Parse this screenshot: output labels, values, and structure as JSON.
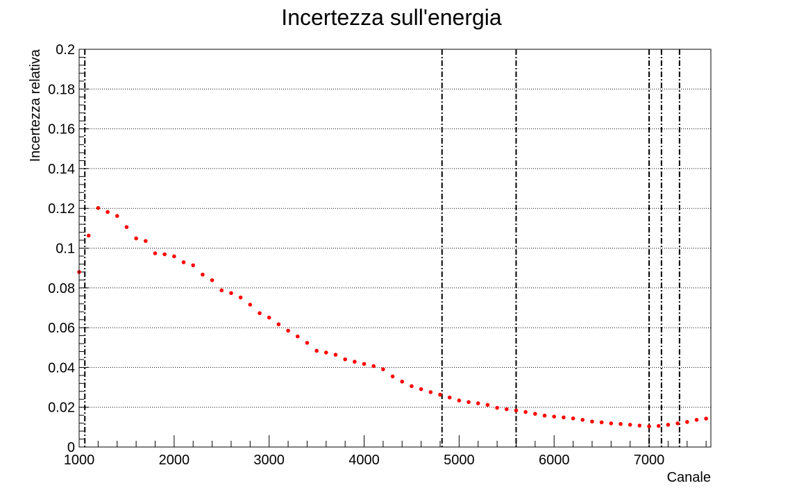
{
  "chart_data": {
    "type": "scatter",
    "title": "Incertezza sull'energia",
    "xlabel": "Canale",
    "ylabel": "Incertezza relativa",
    "xlim": [
      1000,
      7650
    ],
    "ylim": [
      0,
      0.2
    ],
    "grid": "horizontal dotted",
    "x_ticks": [
      1000,
      2000,
      3000,
      4000,
      5000,
      6000,
      7000
    ],
    "x_tick_labels": [
      "1000",
      "2000",
      "3000",
      "4000",
      "5000",
      "6000",
      "7000"
    ],
    "y_ticks": [
      0,
      0.02,
      0.04,
      0.06,
      0.08,
      0.1,
      0.12,
      0.14,
      0.16,
      0.18,
      0.2
    ],
    "y_tick_labels": [
      "0",
      "0.02",
      "0.04",
      "0.06",
      "0.08",
      "0.1",
      "0.12",
      "0.14",
      "0.16",
      "0.18",
      "0.2"
    ],
    "marker_color": "#ff0000",
    "vline_color": "#000000",
    "vertical_lines": [
      1060,
      4820,
      5600,
      7000,
      7130,
      7320
    ],
    "series": [
      {
        "x": [
          1000,
          1100,
          1200,
          1300,
          1400,
          1500,
          1600,
          1700,
          1800,
          1900,
          2000,
          2100,
          2200,
          2300,
          2400,
          2500,
          2600,
          2700,
          2800,
          2900,
          3000,
          3100,
          3200,
          3300,
          3400,
          3500,
          3600,
          3700,
          3800,
          3900,
          4000,
          4100,
          4200,
          4300,
          4400,
          4500,
          4600,
          4700,
          4800,
          4900,
          5000,
          5100,
          5200,
          5300,
          5400,
          5500,
          5600,
          5700,
          5800,
          5900,
          6000,
          6100,
          6200,
          6300,
          6400,
          6500,
          6600,
          6700,
          6800,
          6900,
          7000,
          7100,
          7200,
          7300,
          7400,
          7500,
          7600
        ],
        "y": [
          0.088,
          0.1063,
          0.1202,
          0.1182,
          0.1162,
          0.1106,
          0.1049,
          0.1036,
          0.0974,
          0.0969,
          0.0959,
          0.0929,
          0.0914,
          0.0867,
          0.0839,
          0.0788,
          0.0774,
          0.0752,
          0.0716,
          0.0673,
          0.0651,
          0.0617,
          0.0585,
          0.0556,
          0.0524,
          0.0484,
          0.0475,
          0.0464,
          0.0441,
          0.0429,
          0.0418,
          0.0407,
          0.0391,
          0.0355,
          0.0329,
          0.0306,
          0.0291,
          0.0276,
          0.0263,
          0.0249,
          0.0234,
          0.0226,
          0.022,
          0.0212,
          0.0197,
          0.019,
          0.0184,
          0.0176,
          0.0167,
          0.0158,
          0.0153,
          0.0149,
          0.0144,
          0.0137,
          0.0128,
          0.0124,
          0.0119,
          0.0116,
          0.0112,
          0.0108,
          0.0104,
          0.0106,
          0.0112,
          0.0119,
          0.0126,
          0.0137,
          0.0143
        ]
      }
    ]
  }
}
